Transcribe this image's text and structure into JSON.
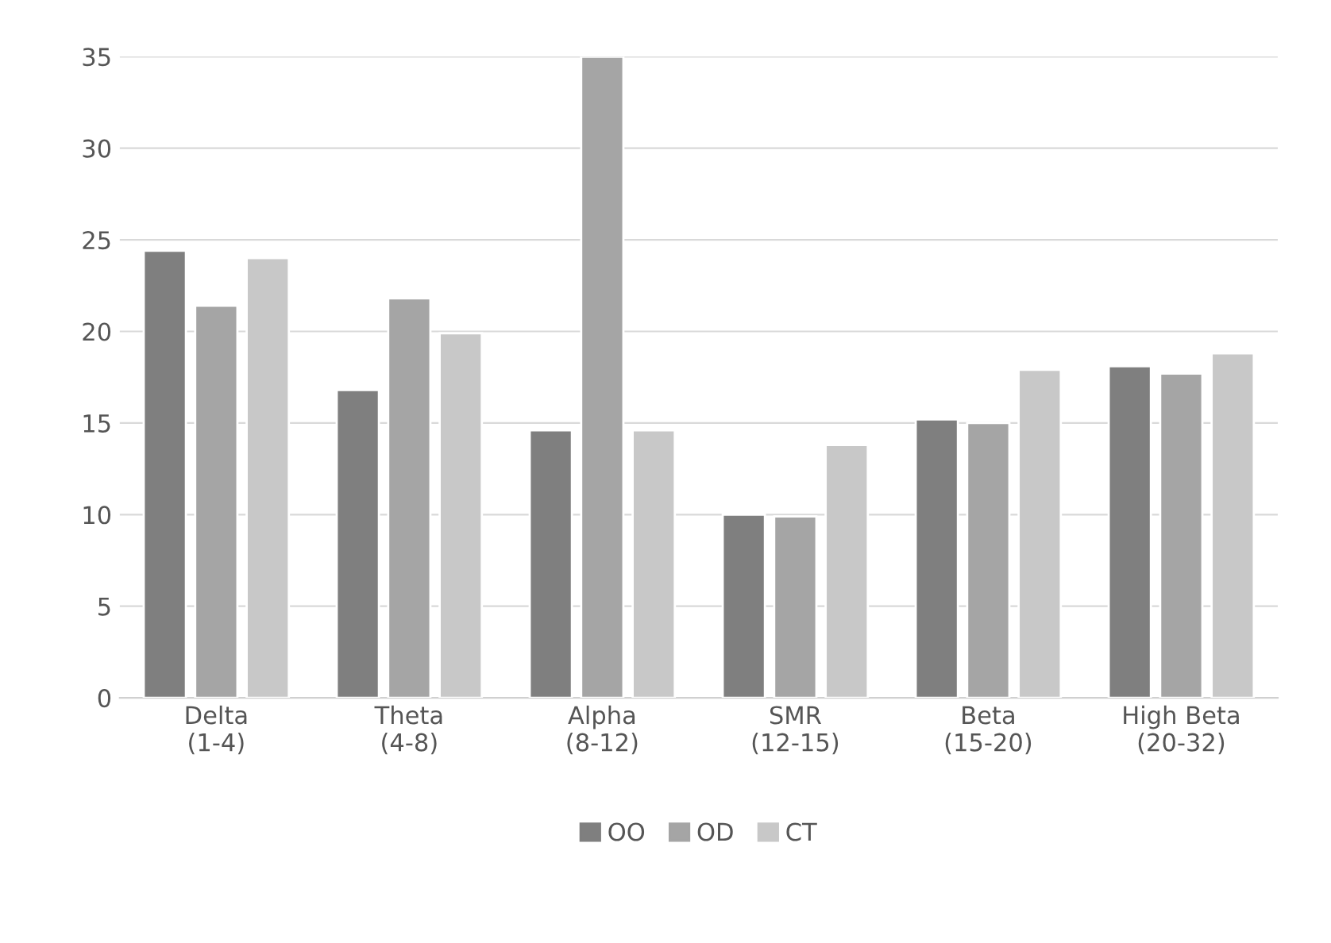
{
  "chart_data": {
    "type": "bar",
    "categories": [
      "Delta\n(1-4)",
      "Theta\n(4-8)",
      "Alpha\n(8-12)",
      "SMR\n(12-15)",
      "Beta\n(15-20)",
      "High Beta\n(20-32)"
    ],
    "series": [
      {
        "name": "OO",
        "color": "#7f7f7f",
        "values": [
          24.4,
          16.8,
          14.6,
          10.0,
          15.2,
          18.1
        ]
      },
      {
        "name": "OD",
        "color": "#a5a5a5",
        "values": [
          21.4,
          21.8,
          35.0,
          9.9,
          15.0,
          17.7
        ]
      },
      {
        "name": "CT",
        "color": "#c8c8c8",
        "values": [
          24.0,
          19.9,
          14.6,
          13.8,
          17.9,
          18.8
        ]
      }
    ],
    "ylim": [
      0,
      35
    ],
    "yticks": [
      0,
      5,
      10,
      15,
      20,
      25,
      30,
      35
    ],
    "grid": "y",
    "legend": "bottom"
  }
}
